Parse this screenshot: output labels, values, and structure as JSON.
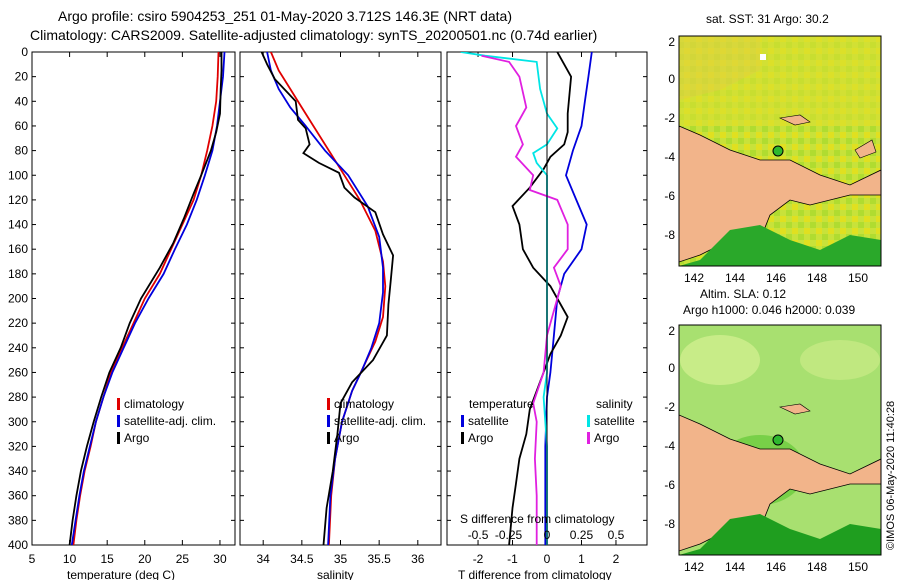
{
  "header": {
    "line1": "Argo profile: csiro 5904253_251 01-May-2020 3.712S 146.3E (NRT data)",
    "line2": "Climatology: CARS2009. Satellite-adjusted climatology: synTS_20200501.nc (0.74d earlier)"
  },
  "colors": {
    "climatology": "#e00000",
    "satellite": "#0000dd",
    "argo": "#000000",
    "sat_salinity": "#00e5e5",
    "salinity_diff": "#e020e0",
    "land": "#f2b48a"
  },
  "chart_data": [
    {
      "type": "line",
      "id": "temperature",
      "xlabel": "temperature (deg C)",
      "xlim": [
        5,
        32
      ],
      "ylim": [
        0,
        400
      ],
      "xticks": [
        5,
        10,
        15,
        20,
        25,
        30
      ],
      "yticks": [
        0,
        20,
        40,
        60,
        80,
        100,
        120,
        140,
        160,
        180,
        200,
        220,
        240,
        260,
        280,
        300,
        320,
        340,
        360,
        380,
        400
      ],
      "legend": [
        "climatology",
        "satellite-adj. clim.",
        "Argo"
      ],
      "series": [
        {
          "name": "climatology",
          "color": "climatology",
          "points": [
            [
              29.8,
              0
            ],
            [
              29.7,
              20
            ],
            [
              29.5,
              40
            ],
            [
              29.0,
              60
            ],
            [
              28.3,
              80
            ],
            [
              27.5,
              100
            ],
            [
              26.5,
              120
            ],
            [
              25.0,
              140
            ],
            [
              23.5,
              160
            ],
            [
              22.0,
              180
            ],
            [
              20.0,
              200
            ],
            [
              18.5,
              220
            ],
            [
              17.0,
              240
            ],
            [
              15.5,
              260
            ],
            [
              14.5,
              280
            ],
            [
              13.5,
              300
            ],
            [
              12.8,
              320
            ],
            [
              12.0,
              340
            ],
            [
              11.4,
              360
            ],
            [
              10.9,
              380
            ],
            [
              10.5,
              400
            ]
          ]
        },
        {
          "name": "satellite-adj. clim.",
          "color": "satellite",
          "points": [
            [
              30.6,
              0
            ],
            [
              30.4,
              20
            ],
            [
              30.0,
              40
            ],
            [
              29.6,
              60
            ],
            [
              29.0,
              80
            ],
            [
              28.0,
              100
            ],
            [
              26.9,
              120
            ],
            [
              25.6,
              140
            ],
            [
              24.0,
              160
            ],
            [
              22.5,
              180
            ],
            [
              20.5,
              200
            ],
            [
              18.7,
              220
            ],
            [
              17.2,
              240
            ],
            [
              15.7,
              260
            ],
            [
              14.5,
              280
            ],
            [
              13.5,
              300
            ],
            [
              12.7,
              320
            ],
            [
              11.9,
              340
            ],
            [
              11.3,
              360
            ],
            [
              10.8,
              380
            ],
            [
              10.3,
              400
            ]
          ]
        },
        {
          "name": "Argo",
          "color": "argo",
          "points": [
            [
              30.2,
              0
            ],
            [
              30.2,
              15
            ],
            [
              30.1,
              30
            ],
            [
              30.0,
              50
            ],
            [
              29.5,
              65
            ],
            [
              28.8,
              80
            ],
            [
              27.5,
              100
            ],
            [
              26.5,
              115
            ],
            [
              25.2,
              135
            ],
            [
              23.8,
              155
            ],
            [
              22.0,
              175
            ],
            [
              21.0,
              185
            ],
            [
              19.5,
              200
            ],
            [
              18.0,
              220
            ],
            [
              16.8,
              240
            ],
            [
              15.3,
              260
            ],
            [
              14.2,
              280
            ],
            [
              13.2,
              300
            ],
            [
              12.3,
              320
            ],
            [
              11.5,
              340
            ],
            [
              10.9,
              360
            ],
            [
              10.4,
              380
            ],
            [
              10.0,
              400
            ]
          ]
        }
      ]
    },
    {
      "type": "line",
      "id": "salinity",
      "xlabel": "salinity",
      "xlim": [
        33.7,
        36.3
      ],
      "ylim": [
        0,
        400
      ],
      "xticks": [
        34,
        34.5,
        35,
        35.5,
        36
      ],
      "legend": [
        "climatology",
        "satellite-adj. clim.",
        "Argo"
      ],
      "series": [
        {
          "name": "climatology",
          "color": "climatology",
          "points": [
            [
              34.1,
              0
            ],
            [
              34.2,
              15
            ],
            [
              34.35,
              30
            ],
            [
              34.5,
              45
            ],
            [
              34.65,
              60
            ],
            [
              34.85,
              80
            ],
            [
              35.05,
              100
            ],
            [
              35.25,
              120
            ],
            [
              35.45,
              145
            ],
            [
              35.55,
              170
            ],
            [
              35.58,
              190
            ],
            [
              35.55,
              215
            ],
            [
              35.45,
              235
            ],
            [
              35.3,
              255
            ],
            [
              35.15,
              275
            ],
            [
              35.02,
              300
            ],
            [
              34.93,
              330
            ],
            [
              34.88,
              360
            ],
            [
              34.85,
              400
            ]
          ]
        },
        {
          "name": "satellite-adj. clim.",
          "color": "satellite",
          "points": [
            [
              34.05,
              0
            ],
            [
              34.1,
              15
            ],
            [
              34.2,
              30
            ],
            [
              34.35,
              45
            ],
            [
              34.55,
              60
            ],
            [
              34.8,
              80
            ],
            [
              35.1,
              100
            ],
            [
              35.35,
              125
            ],
            [
              35.5,
              150
            ],
            [
              35.55,
              175
            ],
            [
              35.55,
              195
            ],
            [
              35.5,
              220
            ],
            [
              35.4,
              240
            ],
            [
              35.28,
              258
            ],
            [
              35.15,
              275
            ],
            [
              35.02,
              300
            ],
            [
              34.93,
              330
            ],
            [
              34.87,
              360
            ],
            [
              34.84,
              400
            ]
          ]
        },
        {
          "name": "Argo",
          "color": "argo",
          "points": [
            [
              33.98,
              0
            ],
            [
              34.05,
              10
            ],
            [
              34.15,
              22
            ],
            [
              34.3,
              32
            ],
            [
              34.42,
              40
            ],
            [
              34.45,
              55
            ],
            [
              34.55,
              62
            ],
            [
              34.6,
              75
            ],
            [
              34.52,
              82
            ],
            [
              34.72,
              90
            ],
            [
              34.98,
              98
            ],
            [
              35.05,
              110
            ],
            [
              35.18,
              118
            ],
            [
              35.45,
              130
            ],
            [
              35.55,
              148
            ],
            [
              35.68,
              165
            ],
            [
              35.65,
              185
            ],
            [
              35.62,
              205
            ],
            [
              35.6,
              230
            ],
            [
              35.42,
              250
            ],
            [
              35.15,
              268
            ],
            [
              35.0,
              285
            ],
            [
              34.96,
              310
            ],
            [
              34.9,
              340
            ],
            [
              34.82,
              370
            ],
            [
              34.78,
              400
            ]
          ]
        }
      ]
    },
    {
      "type": "line",
      "id": "difference",
      "xlabel": "T difference from climatology",
      "xlabel_top": "S difference from climatology",
      "xlim": [
        -2.9,
        2.9
      ],
      "ylim": [
        0,
        400
      ],
      "xticks": [
        -2,
        -1,
        0,
        1,
        2
      ],
      "xticks_s": [
        "-0.5",
        "-0.25",
        "0",
        "0.25",
        "0.5"
      ],
      "legend_left_title": "temperature",
      "legend_right_title": "salinity",
      "legend_left": [
        "satellite",
        "Argo"
      ],
      "legend_right": [
        "satellite",
        "Argo"
      ],
      "series": [
        {
          "name": "T satellite",
          "color": "satellite",
          "points": [
            [
              1.3,
              0
            ],
            [
              1.2,
              20
            ],
            [
              1.1,
              40
            ],
            [
              1.0,
              60
            ],
            [
              0.75,
              80
            ],
            [
              0.55,
              100
            ],
            [
              0.85,
              120
            ],
            [
              1.15,
              140
            ],
            [
              1.0,
              160
            ],
            [
              0.5,
              180
            ],
            [
              0.3,
              200
            ],
            [
              0.2,
              230
            ],
            [
              0.1,
              260
            ],
            [
              0.0,
              280
            ],
            [
              -0.05,
              320
            ],
            [
              -0.05,
              360
            ],
            [
              -0.05,
              400
            ]
          ]
        },
        {
          "name": "T Argo",
          "color": "argo",
          "points": [
            [
              0.3,
              0
            ],
            [
              0.7,
              20
            ],
            [
              0.6,
              50
            ],
            [
              0.6,
              65
            ],
            [
              0.5,
              75
            ],
            [
              0.1,
              85
            ],
            [
              -0.1,
              95
            ],
            [
              -0.5,
              110
            ],
            [
              -1.0,
              125
            ],
            [
              -0.8,
              140
            ],
            [
              -0.7,
              160
            ],
            [
              -0.4,
              175
            ],
            [
              0.1,
              190
            ],
            [
              0.3,
              200
            ],
            [
              0.6,
              215
            ],
            [
              0.4,
              230
            ],
            [
              0.1,
              245
            ],
            [
              -0.1,
              260
            ],
            [
              -0.3,
              275
            ],
            [
              -0.5,
              290
            ],
            [
              -0.6,
              310
            ],
            [
              -0.8,
              330
            ],
            [
              -0.9,
              350
            ],
            [
              -1.0,
              370
            ],
            [
              -1.1,
              400
            ]
          ]
        },
        {
          "name": "S satellite",
          "color": "sat_salinity",
          "points": [
            [
              -2.5,
              0
            ],
            [
              -1.8,
              3
            ],
            [
              -0.3,
              8
            ],
            [
              -0.2,
              30
            ],
            [
              0.0,
              50
            ],
            [
              0.3,
              62
            ],
            [
              0.0,
              75
            ],
            [
              -0.4,
              82
            ],
            [
              -0.3,
              90
            ],
            [
              0.0,
              100
            ],
            [
              0.0,
              130
            ],
            [
              0.0,
              200
            ],
            [
              0.0,
              260
            ],
            [
              -0.1,
              280
            ],
            [
              0.0,
              320
            ],
            [
              0.0,
              400
            ]
          ]
        },
        {
          "name": "S Argo",
          "color": "salinity_diff",
          "points": [
            [
              -1.9,
              3
            ],
            [
              -1.1,
              8
            ],
            [
              -0.8,
              20
            ],
            [
              -0.6,
              45
            ],
            [
              -0.9,
              60
            ],
            [
              -0.7,
              75
            ],
            [
              -0.9,
              85
            ],
            [
              -0.4,
              100
            ],
            [
              -0.5,
              112
            ],
            [
              0.3,
              120
            ],
            [
              0.6,
              140
            ],
            [
              0.6,
              160
            ],
            [
              0.2,
              175
            ],
            [
              0.4,
              190
            ],
            [
              0.2,
              210
            ],
            [
              0.0,
              230
            ],
            [
              -0.1,
              260
            ],
            [
              -0.4,
              285
            ],
            [
              -0.3,
              300
            ],
            [
              -0.35,
              330
            ],
            [
              -0.3,
              360
            ],
            [
              -0.3,
              400
            ]
          ]
        }
      ]
    },
    {
      "type": "heatmap",
      "id": "sst-map",
      "title": "sat. SST: 31 Argo: 30.2",
      "xticks": [
        "142",
        "144",
        "146",
        "148",
        "150"
      ],
      "yticks": [
        "2",
        "0",
        "-2",
        "-4",
        "-6",
        "-8"
      ],
      "argo_position": [
        146.3,
        -3.712
      ]
    },
    {
      "type": "heatmap",
      "id": "sla-map",
      "title": "Altim. SLA: 0.12",
      "subtitle": "Argo h1000: 0.046 h2000: 0.039",
      "xticks": [
        "142",
        "144",
        "146",
        "148",
        "150"
      ],
      "yticks": [
        "2",
        "0",
        "-2",
        "-4",
        "-6",
        "-8"
      ],
      "argo_position": [
        146.3,
        -3.712
      ]
    }
  ],
  "footer": {
    "stamp": "©IMOS 06-May-2020 11:40:28"
  }
}
